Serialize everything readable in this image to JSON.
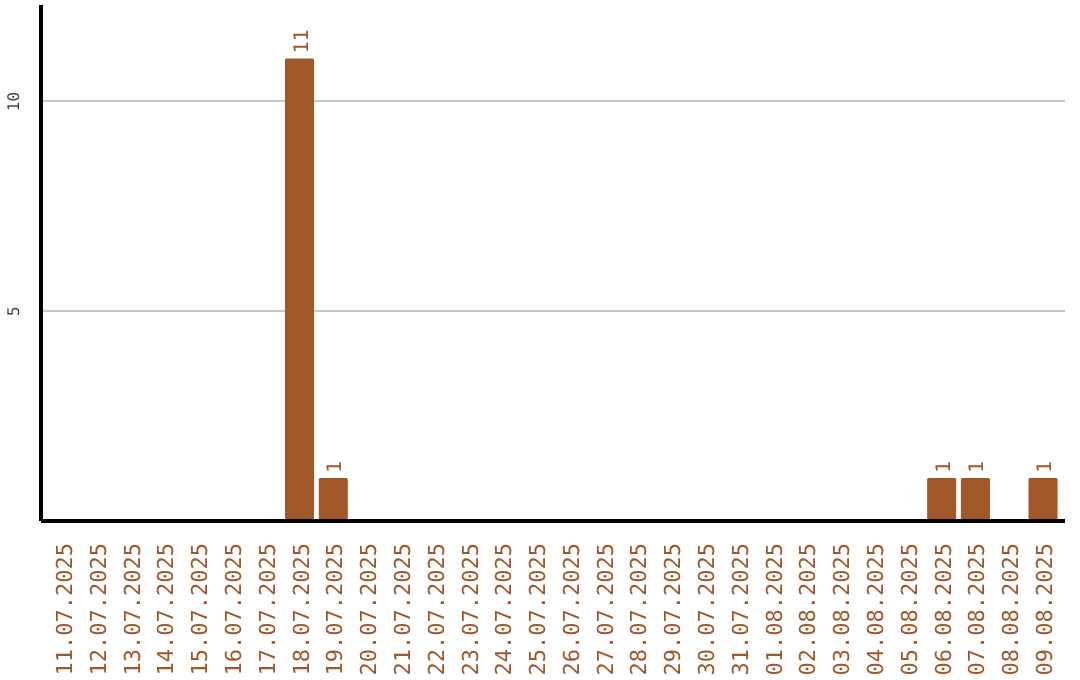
{
  "chart_data": {
    "type": "bar",
    "categories": [
      "11.07.2025",
      "12.07.2025",
      "13.07.2025",
      "14.07.2025",
      "15.07.2025",
      "16.07.2025",
      "17.07.2025",
      "18.07.2025",
      "19.07.2025",
      "20.07.2025",
      "21.07.2025",
      "22.07.2025",
      "23.07.2025",
      "24.07.2025",
      "25.07.2025",
      "26.07.2025",
      "27.07.2025",
      "28.07.2025",
      "29.07.2025",
      "30.07.2025",
      "31.07.2025",
      "01.08.2025",
      "02.08.2025",
      "03.08.2025",
      "04.08.2025",
      "05.08.2025",
      "06.08.2025",
      "07.08.2025",
      "08.08.2025",
      "09.08.2025"
    ],
    "values": [
      0,
      0,
      0,
      0,
      0,
      0,
      0,
      11,
      1,
      0,
      0,
      0,
      0,
      0,
      0,
      0,
      0,
      0,
      0,
      0,
      0,
      0,
      0,
      0,
      0,
      0,
      1,
      1,
      0,
      1
    ],
    "value_labels": [
      null,
      null,
      null,
      null,
      null,
      null,
      null,
      "11",
      "1",
      null,
      null,
      null,
      null,
      null,
      null,
      null,
      null,
      null,
      null,
      null,
      null,
      null,
      null,
      null,
      null,
      null,
      "1",
      "1",
      null,
      "1"
    ],
    "color": "#a0582a",
    "ylim": [
      0,
      12.3
    ],
    "yticks": [
      5,
      10
    ],
    "grid": "y"
  }
}
